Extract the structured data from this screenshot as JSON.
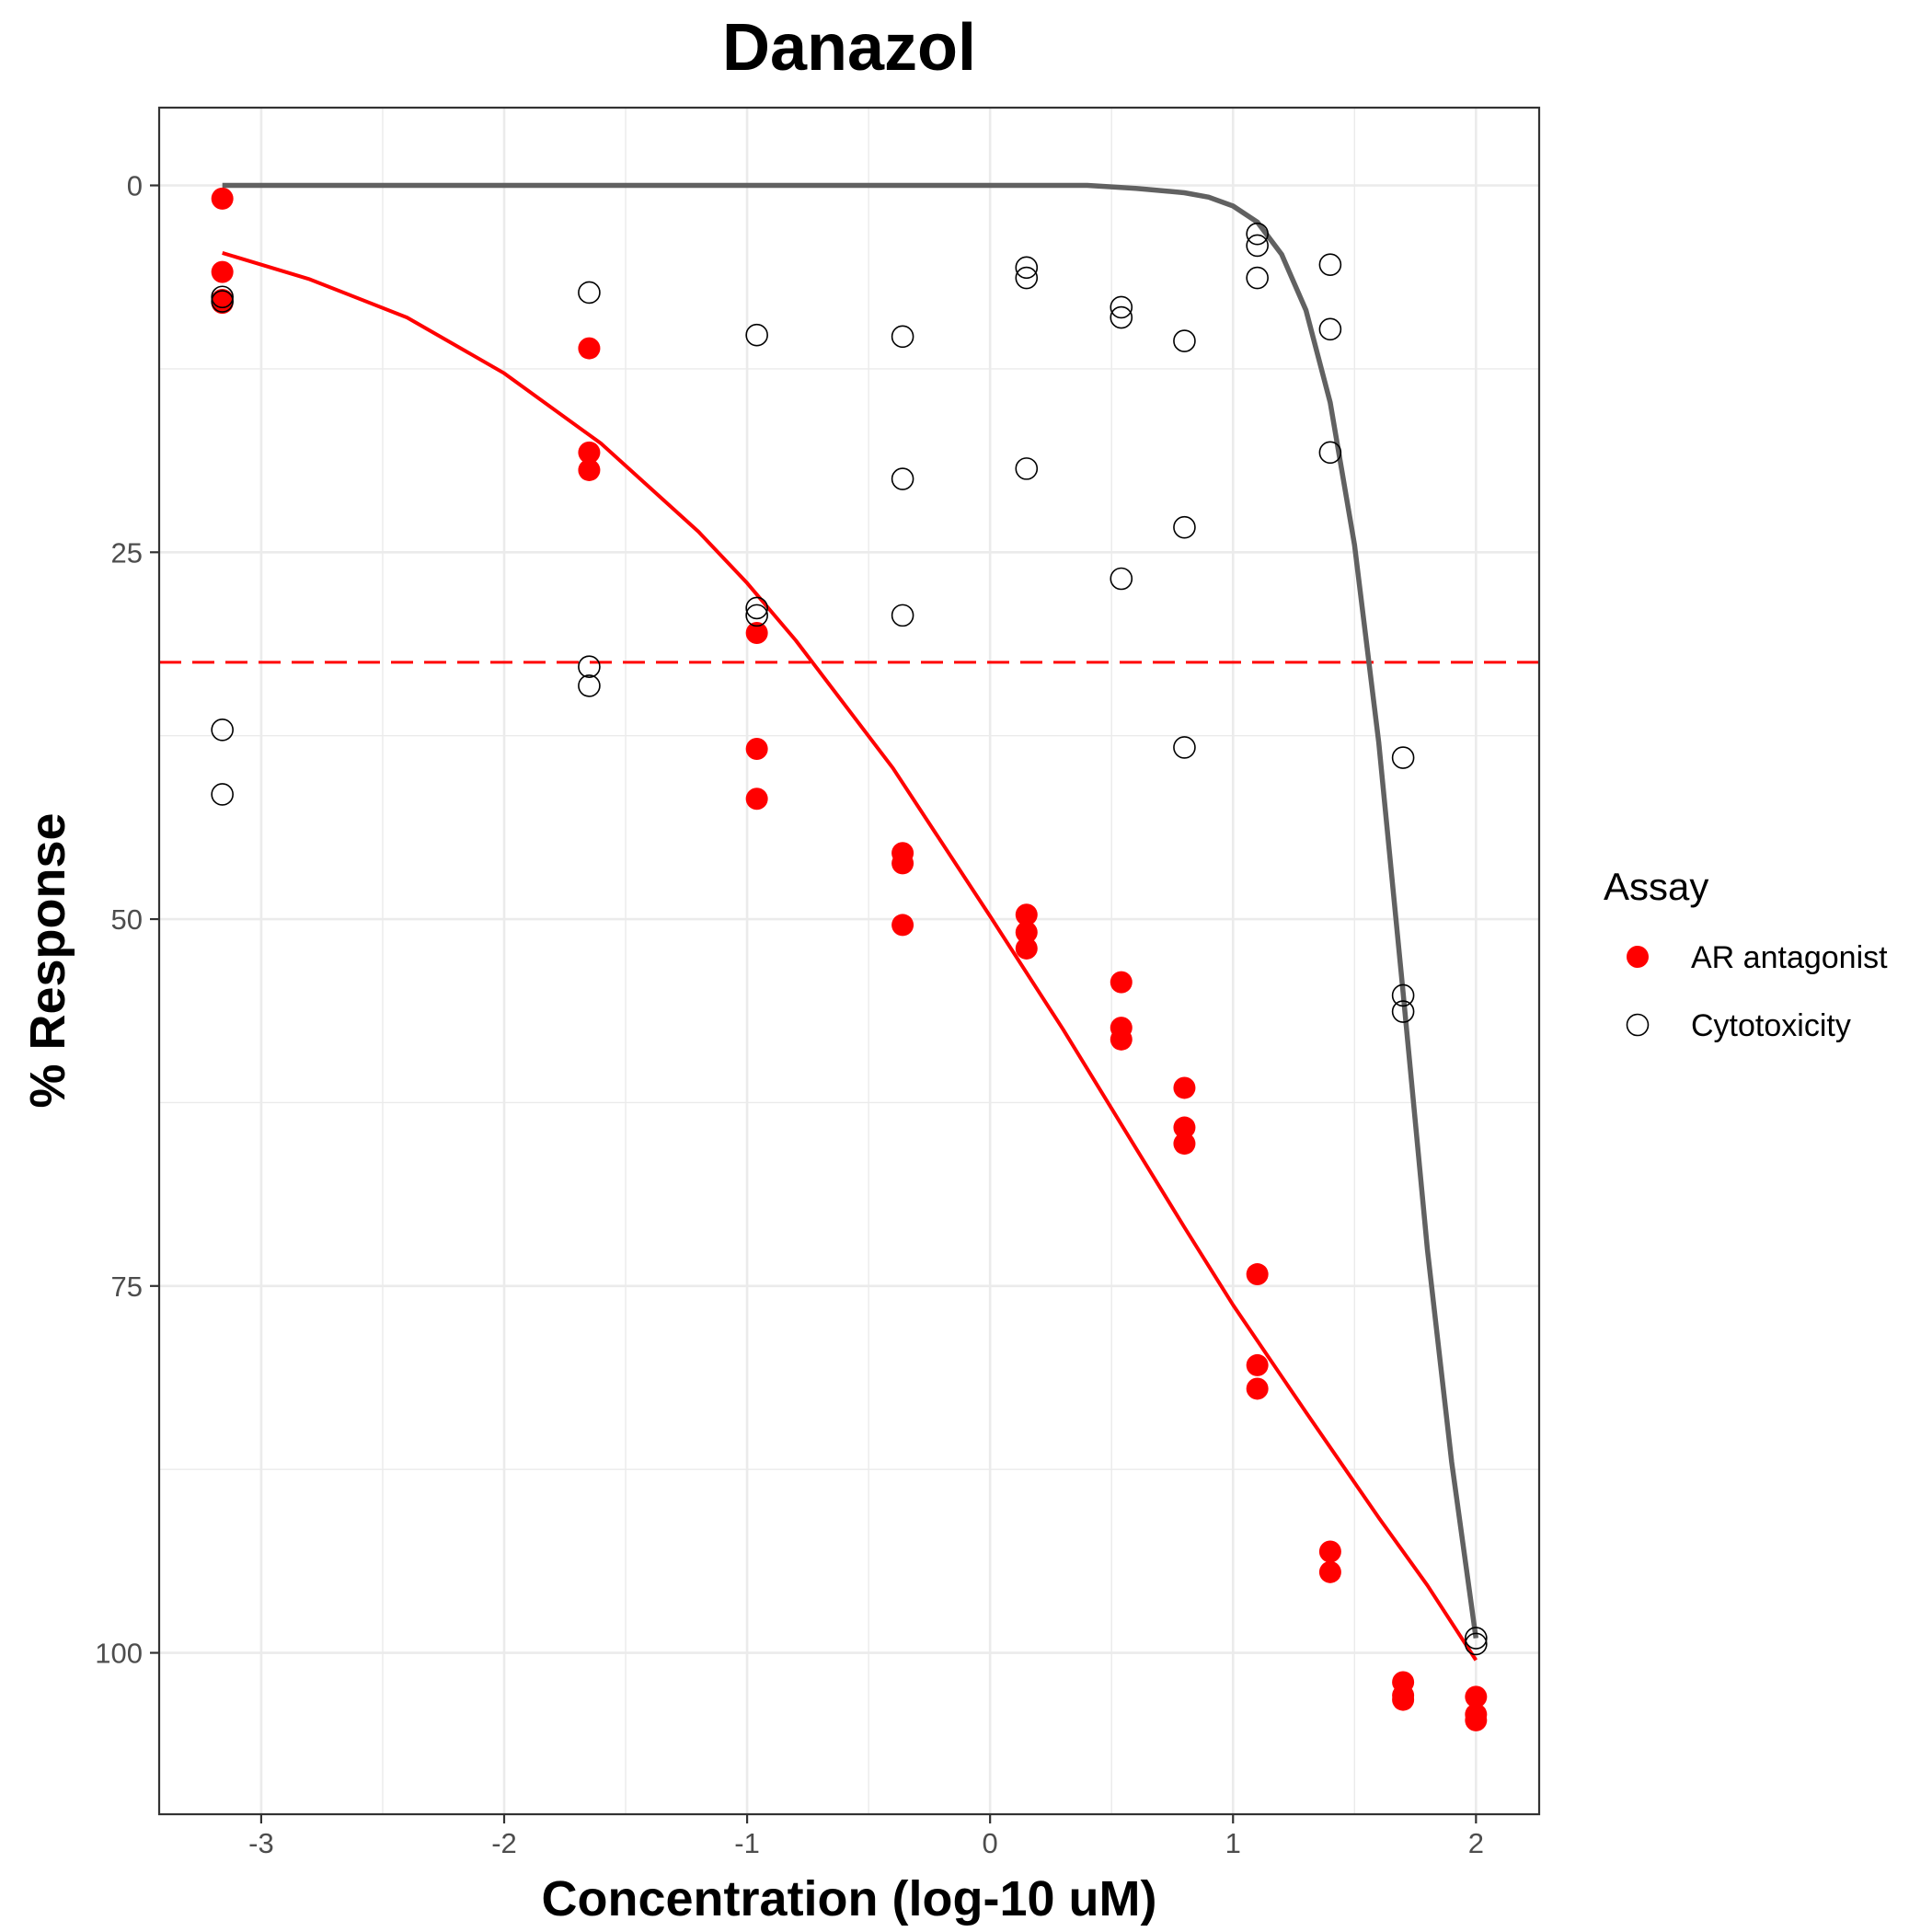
{
  "chart_data": {
    "type": "scatter",
    "title": "Danazol",
    "xlabel": "Concentration (log-10 uM)",
    "ylabel": "% Response",
    "xlim": [
      -3.42,
      2.26
    ],
    "ylim": [
      -5.3,
      111.0
    ],
    "y_reversed": true,
    "x_ticks": [
      "-3",
      "-2",
      "-1",
      "0",
      "1",
      "2"
    ],
    "y_ticks": [
      "0",
      "25",
      "50",
      "75",
      "100"
    ],
    "grid": true,
    "legend": {
      "title": "Assay",
      "position": "right"
    },
    "threshold_line": {
      "y": 32.5,
      "color": "#ff0000",
      "style": "dashed"
    },
    "series": [
      {
        "name": "AR antagonist",
        "marker": "filled-circle",
        "color": "#ff0000",
        "points": [
          [
            -3.16,
            0.9
          ],
          [
            -3.16,
            5.9
          ],
          [
            -3.16,
            7.8
          ],
          [
            -3.16,
            8.0
          ],
          [
            -1.65,
            11.1
          ],
          [
            -1.65,
            18.2
          ],
          [
            -1.65,
            19.4
          ],
          [
            -0.96,
            30.5
          ],
          [
            -0.96,
            38.4
          ],
          [
            -0.96,
            41.8
          ],
          [
            -0.36,
            45.5
          ],
          [
            -0.36,
            46.2
          ],
          [
            -0.36,
            50.4
          ],
          [
            0.15,
            49.7
          ],
          [
            0.15,
            50.9
          ],
          [
            0.15,
            52.0
          ],
          [
            0.54,
            54.3
          ],
          [
            0.54,
            57.4
          ],
          [
            0.54,
            58.2
          ],
          [
            0.8,
            61.5
          ],
          [
            0.8,
            64.2
          ],
          [
            0.8,
            65.3
          ],
          [
            1.1,
            74.2
          ],
          [
            1.1,
            80.4
          ],
          [
            1.1,
            82.0
          ],
          [
            1.4,
            93.1
          ],
          [
            1.4,
            94.5
          ],
          [
            1.7,
            102.0
          ],
          [
            1.7,
            102.9
          ],
          [
            1.7,
            103.2
          ],
          [
            2.0,
            103.0
          ],
          [
            2.0,
            104.2
          ],
          [
            2.0,
            104.6
          ]
        ],
        "curve": [
          [
            -3.16,
            4.6
          ],
          [
            -2.8,
            6.4
          ],
          [
            -2.4,
            9.0
          ],
          [
            -2.0,
            12.8
          ],
          [
            -1.6,
            17.6
          ],
          [
            -1.2,
            23.6
          ],
          [
            -1.0,
            27.1
          ],
          [
            -0.8,
            31.0
          ],
          [
            -0.4,
            39.7
          ],
          [
            0.0,
            49.8
          ],
          [
            0.3,
            57.5
          ],
          [
            0.6,
            65.6
          ],
          [
            0.8,
            71.0
          ],
          [
            1.0,
            76.3
          ],
          [
            1.3,
            83.6
          ],
          [
            1.6,
            90.8
          ],
          [
            1.8,
            95.4
          ],
          [
            2.0,
            100.5
          ]
        ]
      },
      {
        "name": "Cytotoxicity",
        "marker": "open-circle",
        "color": "#000000",
        "points": [
          [
            -3.16,
            7.6
          ],
          [
            -3.16,
            7.9
          ],
          [
            -3.16,
            37.1
          ],
          [
            -3.16,
            41.5
          ],
          [
            -1.65,
            7.3
          ],
          [
            -1.65,
            32.8
          ],
          [
            -1.65,
            34.1
          ],
          [
            -0.96,
            10.2
          ],
          [
            -0.96,
            28.8
          ],
          [
            -0.96,
            29.3
          ],
          [
            -0.36,
            10.3
          ],
          [
            -0.36,
            20.0
          ],
          [
            -0.36,
            29.3
          ],
          [
            0.15,
            5.6
          ],
          [
            0.15,
            6.3
          ],
          [
            0.15,
            19.3
          ],
          [
            0.54,
            8.3
          ],
          [
            0.54,
            9.0
          ],
          [
            0.54,
            26.8
          ],
          [
            0.8,
            10.6
          ],
          [
            0.8,
            23.3
          ],
          [
            0.8,
            38.3
          ],
          [
            1.1,
            3.3
          ],
          [
            1.1,
            4.1
          ],
          [
            1.1,
            6.3
          ],
          [
            1.4,
            5.4
          ],
          [
            1.4,
            9.8
          ],
          [
            1.4,
            18.2
          ],
          [
            1.7,
            39.0
          ],
          [
            1.7,
            55.2
          ],
          [
            1.7,
            56.3
          ],
          [
            2.0,
            99.0
          ],
          [
            2.0,
            99.4
          ]
        ],
        "curve": [
          [
            -3.16,
            0.0
          ],
          [
            -1.0,
            0.0
          ],
          [
            0.0,
            0.0
          ],
          [
            0.4,
            0.0
          ],
          [
            0.6,
            0.2
          ],
          [
            0.8,
            0.5
          ],
          [
            0.9,
            0.8
          ],
          [
            1.0,
            1.4
          ],
          [
            1.1,
            2.5
          ],
          [
            1.2,
            4.7
          ],
          [
            1.3,
            8.5
          ],
          [
            1.4,
            14.8
          ],
          [
            1.5,
            24.5
          ],
          [
            1.6,
            38.0
          ],
          [
            1.7,
            55.0
          ],
          [
            1.8,
            72.5
          ],
          [
            1.9,
            87.0
          ],
          [
            2.0,
            99.0
          ]
        ]
      }
    ]
  }
}
